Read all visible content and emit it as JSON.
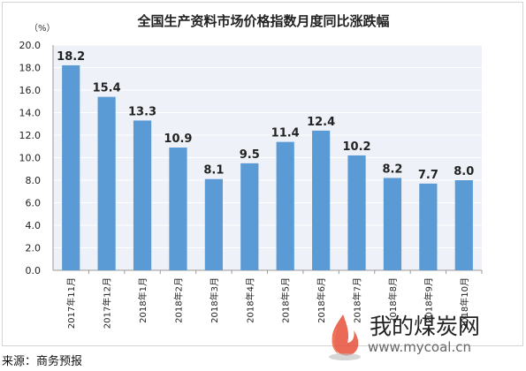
{
  "unit_label": "（%）",
  "source_note": "来源：商务预报",
  "watermark": {
    "name": "我的煤炭网",
    "url": "www.mycoal.cn"
  },
  "chart_data": {
    "type": "bar",
    "title": "全国生产资料市场价格指数月度同比涨跌幅",
    "xlabel": "",
    "ylabel": "",
    "categories": [
      "2017年11月",
      "2017年12月",
      "2018年1月",
      "2018年2月",
      "2018年3月",
      "2018年4月",
      "2018年5月",
      "2018年6月",
      "2018年7月",
      "2018年8月",
      "2018年9月",
      "2018年10月"
    ],
    "values": [
      18.2,
      15.4,
      13.3,
      10.9,
      8.1,
      9.5,
      11.4,
      12.4,
      10.2,
      8.2,
      7.7,
      8.0
    ],
    "ylim": [
      0,
      20
    ],
    "yticks": [
      "0.0",
      "2.0",
      "4.0",
      "6.0",
      "8.0",
      "10.0",
      "12.0",
      "14.0",
      "16.0",
      "18.0",
      "20.0"
    ],
    "grid": true,
    "bar_color": "#5b9bd5"
  }
}
